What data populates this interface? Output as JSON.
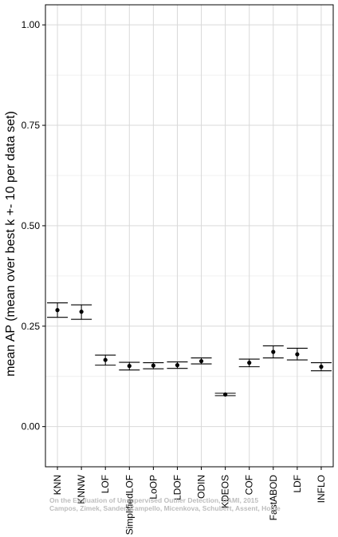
{
  "chart_data": {
    "type": "scatter",
    "ylabel": "mean AP (mean over best k +- 10 per data set)",
    "xlabel": "",
    "ylim": [
      -0.1,
      1.05
    ],
    "yticks": [
      0.0,
      0.25,
      0.5,
      0.75,
      1.0
    ],
    "ytick_labels": [
      "0.00",
      "0.25",
      "0.50",
      "0.75",
      "1.00"
    ],
    "grid": true,
    "categories": [
      "KNN",
      "KNNW",
      "LOF",
      "SimplifiedLOF",
      "LoOP",
      "LDOF",
      "ODIN",
      "KDEOS",
      "COF",
      "FastABOD",
      "LDF",
      "INFLO"
    ],
    "values": [
      0.29,
      0.286,
      0.166,
      0.151,
      0.152,
      0.153,
      0.163,
      0.08,
      0.159,
      0.186,
      0.18,
      0.149
    ],
    "lower": [
      0.272,
      0.267,
      0.153,
      0.141,
      0.144,
      0.145,
      0.156,
      0.077,
      0.149,
      0.171,
      0.166,
      0.139
    ],
    "upper": [
      0.308,
      0.303,
      0.178,
      0.16,
      0.159,
      0.161,
      0.171,
      0.083,
      0.168,
      0.201,
      0.195,
      0.159
    ]
  },
  "watermark": {
    "line1": "On the Evaluation of Unsupervised Outlier Detection, DAMI, 2015",
    "line2": "Campos, Zimek, Sander, Campello, Micenkova, Schubert, Assent, Houle"
  }
}
